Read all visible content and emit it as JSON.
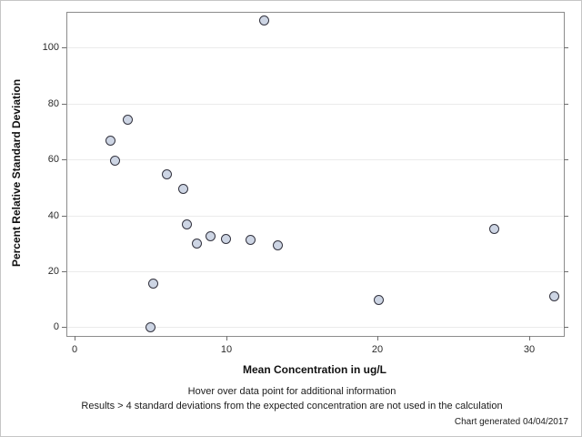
{
  "chart_data": {
    "type": "scatter",
    "title": "",
    "xlabel": "Mean Concentration in ug/L",
    "ylabel": "Percent Relative Standard Deviation",
    "xlim": [
      -0.54,
      32.25
    ],
    "ylim": [
      -2.8,
      112.8
    ],
    "xticks": [
      0,
      10,
      20,
      30
    ],
    "yticks": [
      0,
      20,
      40,
      60,
      80,
      100
    ],
    "grid": "horizontal-only",
    "legend": "none",
    "marker": {
      "shape": "circle",
      "fill": "#cdd5e4",
      "stroke": "#32323e"
    },
    "points": [
      {
        "x": 2.4,
        "y": 66.7
      },
      {
        "x": 2.7,
        "y": 59.6
      },
      {
        "x": 3.5,
        "y": 74.3
      },
      {
        "x": 5.0,
        "y": 0.0
      },
      {
        "x": 5.2,
        "y": 15.5
      },
      {
        "x": 6.1,
        "y": 54.7
      },
      {
        "x": 7.2,
        "y": 49.6
      },
      {
        "x": 7.4,
        "y": 36.7
      },
      {
        "x": 8.1,
        "y": 29.8
      },
      {
        "x": 9.0,
        "y": 32.6
      },
      {
        "x": 10.0,
        "y": 31.4
      },
      {
        "x": 11.6,
        "y": 31.2
      },
      {
        "x": 12.5,
        "y": 109.8
      },
      {
        "x": 13.4,
        "y": 29.3
      },
      {
        "x": 20.1,
        "y": 9.8
      },
      {
        "x": 27.7,
        "y": 35.2
      },
      {
        "x": 31.7,
        "y": 11.1
      }
    ]
  },
  "footnotes": {
    "line1": "Hover over data point for additional information",
    "line2": "Results > 4 standard deviations from the expected concentration are not used in the calculation",
    "generated": "Chart generated 04/04/2017"
  },
  "colors": {
    "plot_border": "#8c8c8c",
    "gridline": "#ebebeb",
    "tick": "#6e6e6e",
    "outer_border": "#c6c6c6",
    "marker_fill": "#cdd5e4",
    "marker_stroke": "#32323e"
  }
}
